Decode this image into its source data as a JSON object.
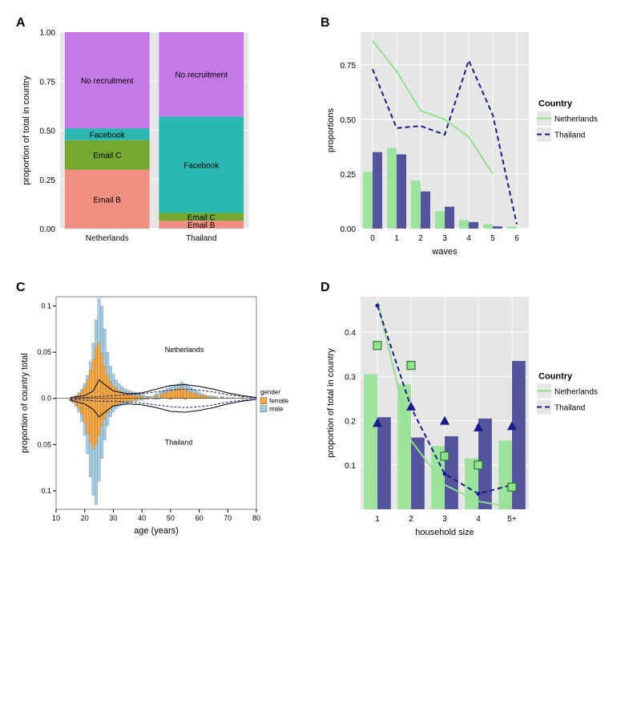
{
  "panels": {
    "A": {
      "label": "A",
      "type": "stacked-bar",
      "xlabel": "",
      "ylabel": "proportion of total in country",
      "ylim": [
        0,
        1
      ],
      "yticks": [
        0.0,
        0.25,
        0.5,
        0.75,
        1.0
      ],
      "ytick_labels": [
        "0.00",
        "0.25",
        "0.50",
        "0.75",
        "1.00"
      ],
      "categories": [
        "Netherlands",
        "Thailand"
      ],
      "segments": [
        {
          "key": "emailB",
          "label": "Email B",
          "color": "#f28e82"
        },
        {
          "key": "emailC",
          "label": "Email C",
          "color": "#74a82e"
        },
        {
          "key": "facebook",
          "label": "Facebook",
          "color": "#2bb8b2"
        },
        {
          "key": "norec",
          "label": "No recruitment",
          "color": "#c47ae6"
        }
      ],
      "stacks": {
        "Netherlands": {
          "emailB": 0.3,
          "emailC": 0.15,
          "facebook": 0.06,
          "norec": 0.49
        },
        "Thailand": {
          "emailB": 0.04,
          "emailC": 0.04,
          "facebook": 0.49,
          "norec": 0.43
        }
      },
      "bar_width": 0.9,
      "plot_bg": "#e6e6e6"
    },
    "B": {
      "label": "B",
      "type": "bar+line",
      "xlabel": "waves",
      "ylabel": "proportions",
      "xlim": [
        -0.5,
        6.5
      ],
      "ylim": [
        0,
        0.9
      ],
      "xticks": [
        0,
        1,
        2,
        3,
        4,
        5,
        6
      ],
      "yticks": [
        0.0,
        0.25,
        0.5,
        0.75
      ],
      "ytick_labels": [
        "0.00",
        "0.25",
        "0.50",
        "0.75"
      ],
      "bars": {
        "Netherlands": [
          0.26,
          0.37,
          0.22,
          0.08,
          0.04,
          0.02,
          0.01
        ],
        "Thailand": [
          0.35,
          0.34,
          0.17,
          0.1,
          0.03,
          0.01,
          0.0
        ]
      },
      "lines": {
        "Netherlands": [
          [
            0,
            0.86
          ],
          [
            1,
            0.72
          ],
          [
            2,
            0.54
          ],
          [
            3,
            0.5
          ],
          [
            4,
            0.42
          ],
          [
            5,
            0.25
          ]
        ],
        "Thailand": [
          [
            0,
            0.73
          ],
          [
            1,
            0.46
          ],
          [
            2,
            0.47
          ],
          [
            3,
            0.43
          ],
          [
            4,
            0.77
          ],
          [
            5,
            0.52
          ],
          [
            6,
            0.02
          ]
        ]
      },
      "colors": {
        "Netherlands": "#8fe28f",
        "Thailand": "#3a3a8e"
      },
      "line_colors": {
        "Netherlands": "#8fe28f",
        "Thailand": "#1a1a8a"
      },
      "bar_alpha": 0.85,
      "dash": {
        "Netherlands": "none",
        "Thailand": "6,4"
      },
      "line_width": 2,
      "legend": {
        "title": "Country",
        "items": [
          "Netherlands",
          "Thailand"
        ]
      },
      "plot_bg": "#e6e6e6"
    },
    "C": {
      "label": "C",
      "type": "mirrored-histogram",
      "xlabel": "age (years)",
      "ylabel": "proportion of country total",
      "xlim": [
        10,
        80
      ],
      "ylim": [
        -0.12,
        0.11
      ],
      "xticks": [
        10,
        20,
        30,
        40,
        50,
        60,
        70,
        80
      ],
      "yticks": [
        -0.1,
        -0.05,
        0,
        0.05,
        0.1
      ],
      "ytick_labels": [
        "0.1",
        "0.05",
        "0.0",
        "0.05",
        "0.1"
      ],
      "bin_width": 1,
      "upper_label": "Netherlands",
      "lower_label": "Thailand",
      "gender_colors": {
        "female": "#f5a742",
        "male": "#a4cce3"
      },
      "gender_border": "#555555",
      "legend": {
        "title": "gender",
        "items": [
          "female",
          "male"
        ]
      },
      "bars_upper_female": [
        [
          17,
          0.002
        ],
        [
          18,
          0.005
        ],
        [
          19,
          0.008
        ],
        [
          20,
          0.012
        ],
        [
          21,
          0.02
        ],
        [
          22,
          0.03
        ],
        [
          23,
          0.042
        ],
        [
          24,
          0.055
        ],
        [
          25,
          0.06
        ],
        [
          26,
          0.048
        ],
        [
          27,
          0.035
        ],
        [
          28,
          0.025
        ],
        [
          29,
          0.018
        ],
        [
          30,
          0.014
        ],
        [
          31,
          0.011
        ],
        [
          32,
          0.009
        ],
        [
          33,
          0.007
        ],
        [
          34,
          0.006
        ],
        [
          35,
          0.005
        ],
        [
          36,
          0.004
        ],
        [
          37,
          0.004
        ],
        [
          38,
          0.003
        ],
        [
          39,
          0.003
        ],
        [
          40,
          0.002
        ],
        [
          42,
          0.002
        ],
        [
          45,
          0.004
        ],
        [
          47,
          0.005
        ],
        [
          48,
          0.006
        ],
        [
          49,
          0.007
        ],
        [
          50,
          0.008
        ],
        [
          51,
          0.009
        ],
        [
          52,
          0.01
        ],
        [
          53,
          0.011
        ],
        [
          54,
          0.012
        ],
        [
          55,
          0.01
        ],
        [
          56,
          0.008
        ],
        [
          57,
          0.007
        ],
        [
          58,
          0.006
        ],
        [
          59,
          0.005
        ],
        [
          60,
          0.004
        ],
        [
          61,
          0.003
        ],
        [
          62,
          0.003
        ],
        [
          63,
          0.002
        ],
        [
          65,
          0.002
        ],
        [
          68,
          0.001
        ],
        [
          70,
          0.001
        ],
        [
          75,
          0.001
        ]
      ],
      "bars_upper_male": [
        [
          17,
          0.003
        ],
        [
          18,
          0.006
        ],
        [
          19,
          0.01
        ],
        [
          20,
          0.016
        ],
        [
          21,
          0.025
        ],
        [
          22,
          0.04
        ],
        [
          23,
          0.06
        ],
        [
          24,
          0.085
        ],
        [
          25,
          0.108
        ],
        [
          26,
          0.1
        ],
        [
          27,
          0.075
        ],
        [
          28,
          0.05
        ],
        [
          29,
          0.035
        ],
        [
          30,
          0.026
        ],
        [
          31,
          0.02
        ],
        [
          32,
          0.016
        ],
        [
          33,
          0.013
        ],
        [
          34,
          0.011
        ],
        [
          35,
          0.009
        ],
        [
          36,
          0.008
        ],
        [
          37,
          0.007
        ],
        [
          38,
          0.006
        ],
        [
          39,
          0.005
        ],
        [
          40,
          0.004
        ],
        [
          41,
          0.003
        ],
        [
          42,
          0.002
        ],
        [
          43,
          0.002
        ],
        [
          44,
          0.003
        ],
        [
          45,
          0.005
        ],
        [
          46,
          0.006
        ],
        [
          47,
          0.008
        ],
        [
          48,
          0.009
        ],
        [
          49,
          0.011
        ],
        [
          50,
          0.013
        ],
        [
          51,
          0.014
        ],
        [
          52,
          0.015
        ],
        [
          53,
          0.016
        ],
        [
          54,
          0.018
        ],
        [
          55,
          0.016
        ],
        [
          56,
          0.014
        ],
        [
          57,
          0.012
        ],
        [
          58,
          0.01
        ],
        [
          59,
          0.008
        ],
        [
          60,
          0.007
        ],
        [
          61,
          0.005
        ],
        [
          62,
          0.004
        ],
        [
          63,
          0.003
        ],
        [
          64,
          0.003
        ],
        [
          65,
          0.002
        ],
        [
          66,
          0.002
        ],
        [
          68,
          0.002
        ],
        [
          70,
          0.001
        ],
        [
          72,
          0.001
        ],
        [
          78,
          0.001
        ]
      ],
      "bars_lower_female": [
        [
          15,
          0.002
        ],
        [
          16,
          0.004
        ],
        [
          17,
          0.007
        ],
        [
          18,
          0.011
        ],
        [
          19,
          0.017
        ],
        [
          20,
          0.026
        ],
        [
          21,
          0.038
        ],
        [
          22,
          0.048
        ],
        [
          23,
          0.055
        ],
        [
          24,
          0.05
        ],
        [
          25,
          0.04
        ],
        [
          26,
          0.03
        ],
        [
          27,
          0.022
        ],
        [
          28,
          0.016
        ],
        [
          29,
          0.012
        ],
        [
          30,
          0.009
        ],
        [
          31,
          0.007
        ],
        [
          32,
          0.006
        ],
        [
          33,
          0.005
        ],
        [
          34,
          0.004
        ],
        [
          35,
          0.003
        ],
        [
          36,
          0.003
        ],
        [
          37,
          0.002
        ],
        [
          38,
          0.002
        ],
        [
          40,
          0.001
        ],
        [
          42,
          0.001
        ],
        [
          45,
          0.001
        ],
        [
          50,
          0.001
        ],
        [
          55,
          0.001
        ]
      ],
      "bars_lower_male": [
        [
          15,
          0.003
        ],
        [
          16,
          0.005
        ],
        [
          17,
          0.009
        ],
        [
          18,
          0.015
        ],
        [
          19,
          0.025
        ],
        [
          20,
          0.04
        ],
        [
          21,
          0.06
        ],
        [
          22,
          0.085
        ],
        [
          23,
          0.105
        ],
        [
          24,
          0.115
        ],
        [
          25,
          0.09
        ],
        [
          26,
          0.065
        ],
        [
          27,
          0.045
        ],
        [
          28,
          0.03
        ],
        [
          29,
          0.02
        ],
        [
          30,
          0.015
        ],
        [
          31,
          0.011
        ],
        [
          32,
          0.009
        ],
        [
          33,
          0.007
        ],
        [
          34,
          0.006
        ],
        [
          35,
          0.005
        ],
        [
          36,
          0.004
        ],
        [
          37,
          0.003
        ],
        [
          38,
          0.003
        ],
        [
          39,
          0.002
        ],
        [
          40,
          0.002
        ],
        [
          41,
          0.001
        ],
        [
          42,
          0.001
        ],
        [
          44,
          0.001
        ],
        [
          46,
          0.001
        ],
        [
          50,
          0.001
        ],
        [
          55,
          0.001
        ]
      ],
      "curves_upper": [
        [
          [
            15,
            0.001
          ],
          [
            20,
            0.003
          ],
          [
            23,
            0.008
          ],
          [
            25,
            0.02
          ],
          [
            27,
            0.015
          ],
          [
            30,
            0.008
          ],
          [
            35,
            0.005
          ],
          [
            40,
            0.006
          ],
          [
            45,
            0.01
          ],
          [
            50,
            0.014
          ],
          [
            55,
            0.015
          ],
          [
            60,
            0.013
          ],
          [
            65,
            0.01
          ],
          [
            70,
            0.006
          ],
          [
            75,
            0.003
          ],
          [
            80,
            0.001
          ]
        ],
        [
          [
            15,
            0.0
          ],
          [
            20,
            0.001
          ],
          [
            25,
            0.002
          ],
          [
            30,
            0.003
          ],
          [
            35,
            0.004
          ],
          [
            40,
            0.005
          ],
          [
            45,
            0.007
          ],
          [
            50,
            0.009
          ],
          [
            55,
            0.01
          ],
          [
            60,
            0.009
          ],
          [
            65,
            0.007
          ],
          [
            70,
            0.004
          ],
          [
            75,
            0.002
          ],
          [
            80,
            0.001
          ]
        ]
      ],
      "curves_lower": [
        [
          [
            15,
            0.002
          ],
          [
            20,
            0.006
          ],
          [
            23,
            0.012
          ],
          [
            25,
            0.02
          ],
          [
            27,
            0.015
          ],
          [
            30,
            0.008
          ],
          [
            35,
            0.006
          ],
          [
            40,
            0.007
          ],
          [
            45,
            0.01
          ],
          [
            50,
            0.014
          ],
          [
            55,
            0.015
          ],
          [
            60,
            0.013
          ],
          [
            65,
            0.01
          ],
          [
            70,
            0.006
          ],
          [
            75,
            0.003
          ],
          [
            80,
            0.001
          ]
        ],
        [
          [
            15,
            0.001
          ],
          [
            20,
            0.002
          ],
          [
            25,
            0.003
          ],
          [
            30,
            0.003
          ],
          [
            35,
            0.004
          ],
          [
            40,
            0.005
          ],
          [
            45,
            0.007
          ],
          [
            50,
            0.009
          ],
          [
            55,
            0.01
          ],
          [
            60,
            0.009
          ],
          [
            65,
            0.007
          ],
          [
            70,
            0.004
          ],
          [
            75,
            0.002
          ],
          [
            80,
            0.001
          ]
        ]
      ],
      "curve_styles": [
        {
          "dash": "none",
          "color": "#000"
        },
        {
          "dash": "3,2",
          "color": "#1a1a8a"
        }
      ],
      "plot_bg": "#ffffff"
    },
    "D": {
      "label": "D",
      "type": "bar+line+markers",
      "xlabel": "household size",
      "ylabel": "proportion of total in country",
      "xlim": [
        0.5,
        5.5
      ],
      "ylim": [
        0,
        0.48
      ],
      "xticks": [
        1,
        2,
        3,
        4,
        5
      ],
      "xtick_labels": [
        "1",
        "2",
        "3",
        "4",
        "5+"
      ],
      "yticks": [
        0.1,
        0.2,
        0.3,
        0.4
      ],
      "ytick_labels": [
        "0.1",
        "0.2",
        "0.3",
        "0.4"
      ],
      "bars": {
        "Netherlands": [
          0.305,
          0.282,
          0.143,
          0.115,
          0.155
        ],
        "Thailand": [
          0.208,
          0.162,
          0.165,
          0.205,
          0.335
        ]
      },
      "lines": {
        "Netherlands": [
          [
            1,
            0.47
          ],
          [
            2,
            0.155
          ],
          [
            3,
            0.055
          ],
          [
            4,
            0.018
          ],
          [
            5,
            0.005
          ]
        ],
        "Thailand": [
          [
            1,
            0.46
          ],
          [
            2,
            0.23
          ],
          [
            3,
            0.08
          ],
          [
            4,
            0.035
          ],
          [
            5,
            0.055
          ]
        ]
      },
      "markers_square": [
        [
          1,
          0.37
        ],
        [
          2,
          0.325
        ],
        [
          3,
          0.12
        ],
        [
          4,
          0.1
        ],
        [
          5,
          0.05
        ]
      ],
      "markers_triangle": [
        [
          1,
          0.195
        ],
        [
          2,
          0.232
        ],
        [
          3,
          0.2
        ],
        [
          4,
          0.185
        ],
        [
          5,
          0.188
        ]
      ],
      "colors": {
        "Netherlands": "#8fe28f",
        "Thailand": "#3a3a8e"
      },
      "line_colors": {
        "Netherlands": "#8fe28f",
        "Thailand": "#1a1a8a"
      },
      "dash": {
        "Netherlands": "none",
        "Thailand": "6,4"
      },
      "marker_colors": {
        "square_fill": "#8fe28f",
        "square_stroke": "#2a7a2a",
        "triangle": "#1a1a8a"
      },
      "line_width": 2,
      "legend": {
        "title": "Country",
        "items": [
          "Netherlands",
          "Thailand"
        ]
      },
      "plot_bg": "#e6e6e6"
    }
  }
}
